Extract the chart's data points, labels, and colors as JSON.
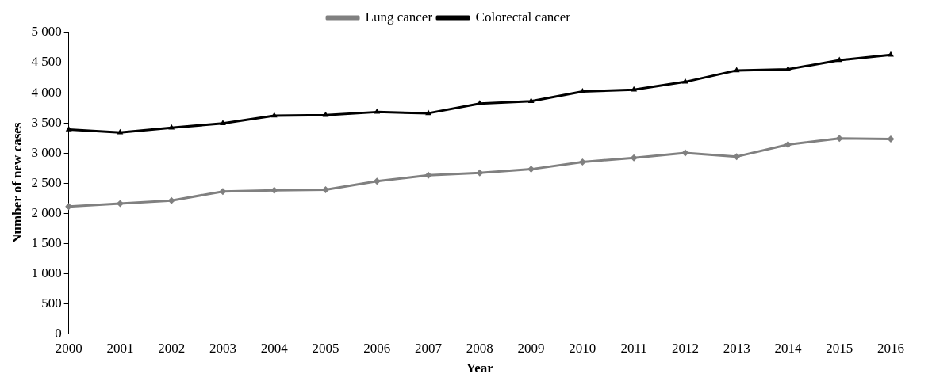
{
  "chart_data": {
    "type": "line",
    "xlabel": "Year",
    "ylabel": "Number of new cases",
    "categories": [
      "2000",
      "2001",
      "2002",
      "2003",
      "2004",
      "2005",
      "2006",
      "2007",
      "2008",
      "2009",
      "2010",
      "2011",
      "2012",
      "2013",
      "2014",
      "2015",
      "2016"
    ],
    "series": [
      {
        "name": "Lung cancer",
        "color": "#808080",
        "marker": "diamond",
        "values": [
          2110,
          2160,
          2210,
          2360,
          2380,
          2390,
          2530,
          2630,
          2670,
          2730,
          2850,
          2920,
          3000,
          2940,
          3140,
          3240,
          3230
        ]
      },
      {
        "name": "Colorectal cancer",
        "color": "#000000",
        "marker": "triangle",
        "values": [
          3390,
          3340,
          3420,
          3490,
          3620,
          3630,
          3680,
          3660,
          3820,
          3860,
          4020,
          4050,
          4180,
          4370,
          4390,
          4540,
          4630
        ]
      }
    ],
    "ylim": [
      0,
      5000
    ],
    "yticks": [
      0,
      500,
      {
        "value": 1000,
        "label": "1 000"
      },
      {
        "value": 1500,
        "label": "1 500"
      },
      {
        "value": 2000,
        "label": "2 000"
      },
      {
        "value": 2500,
        "label": "2 500"
      },
      {
        "value": 3000,
        "label": "3 000"
      },
      {
        "value": 3500,
        "label": "3 500"
      },
      {
        "value": 4000,
        "label": "4 000"
      },
      {
        "value": 4500,
        "label": "4 500"
      },
      {
        "value": 5000,
        "label": "5 000"
      }
    ],
    "grid": false,
    "legend": "top",
    "line_style": "solid"
  }
}
